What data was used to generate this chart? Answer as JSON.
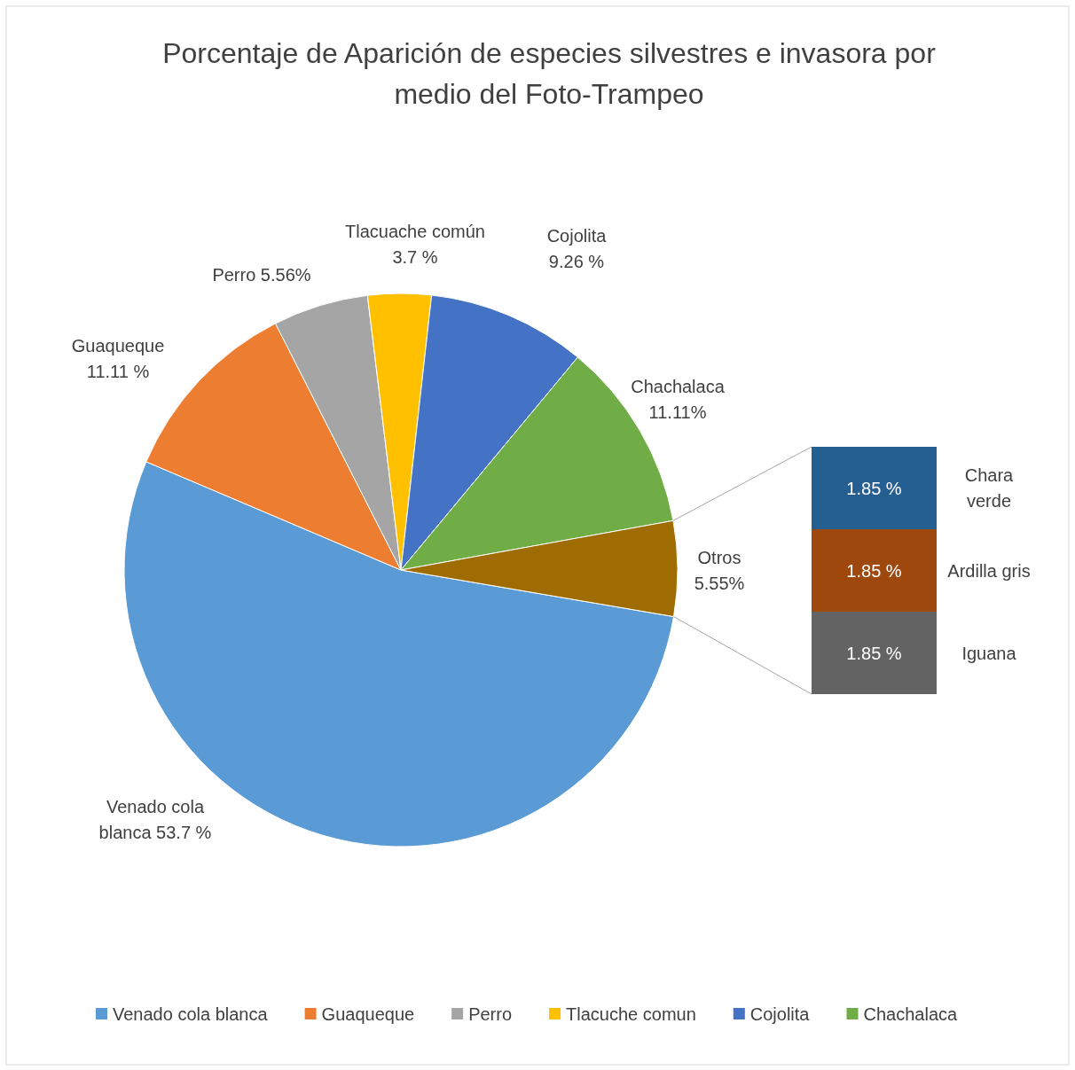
{
  "chart_data": [
    {
      "type": "pie",
      "title": "Porcentaje de Aparición de especies silvestres e invasora por medio del Foto-Trampeo",
      "categories": [
        "Venado cola blanca",
        "Guaqueque",
        "Perro",
        "Tlacuche comun",
        "Cojolita",
        "Chachalaca",
        null
      ],
      "values": [
        53.7,
        11.11,
        5.56,
        3.7,
        9.26,
        11.11,
        5.55
      ],
      "colors": [
        "#5b9bd5",
        "#ed7d31",
        "#a5a5a5",
        "#ffc000",
        "#4472c4",
        "#70ad47",
        "#9e6c00"
      ],
      "value_labels": [
        "Venado cola\nblanca  53.7 %",
        "Guaqueque\n11.11 %",
        "Perro 5.56%",
        "Tlacuache común\n3.7 %",
        "Cojolita\n9.26  %",
        "Chachalaca\n11.11%",
        "Otros\n5.55%"
      ],
      "legend": "bottom"
    },
    {
      "type": "bar",
      "stacked": true,
      "categories": [
        null
      ],
      "series": [
        {
          "name": "Iguana",
          "color": "#636363",
          "values": [
            1.85
          ],
          "value_labels": [
            "1.85 %"
          ]
        },
        {
          "name": "Ardilla gris",
          "color": "#9e480e",
          "values": [
            1.85
          ],
          "value_labels": [
            "1.85 %"
          ]
        },
        {
          "name": "Chara verde",
          "color": "#255e91",
          "values": [
            1.85
          ],
          "value_labels": [
            "1.85 %"
          ]
        }
      ]
    }
  ]
}
